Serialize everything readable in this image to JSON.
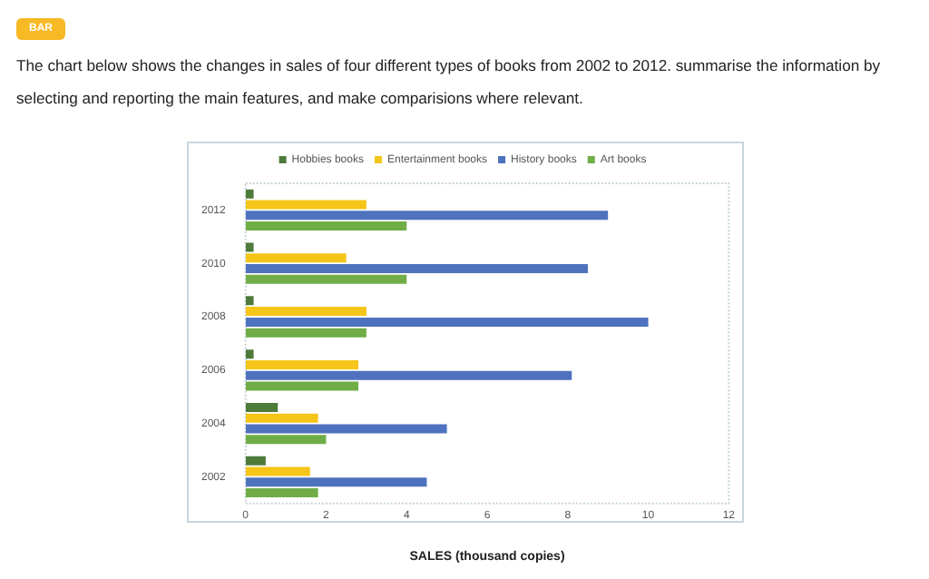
{
  "chart_data": {
    "type": "bar",
    "orientation": "horizontal",
    "title": "The chart below shows the changes in sales of four different types of books from 2002 to 2012. summarise the information by selecting and reporting the main features, and make comparisions where relevant.",
    "annotations": [
      "BAR"
    ],
    "xlabel": "SALES (thousand copies)",
    "categories": [
      "2012",
      "2010",
      "2008",
      "2006",
      "2004",
      "2002"
    ],
    "series": [
      {
        "name": "Hobbies books",
        "color": "#4e7a3a",
        "values": [
          0.2,
          0.2,
          0.2,
          0.2,
          0.8,
          0.5
        ]
      },
      {
        "name": "Entertainment books",
        "color": "#f5c518",
        "values": [
          3.0,
          2.5,
          3.0,
          2.8,
          1.8,
          1.6
        ]
      },
      {
        "name": "History books",
        "color": "#4f72be",
        "values": [
          9.0,
          8.5,
          10.0,
          8.1,
          5.0,
          4.5
        ]
      },
      {
        "name": "Art books",
        "color": "#70ad47",
        "values": [
          4.0,
          4.0,
          3.0,
          2.8,
          2.0,
          1.8
        ]
      }
    ],
    "xlim": [
      0,
      12
    ],
    "xticks": [
      0,
      2,
      4,
      6,
      8,
      10,
      12
    ],
    "grid": false,
    "legend": "top"
  }
}
